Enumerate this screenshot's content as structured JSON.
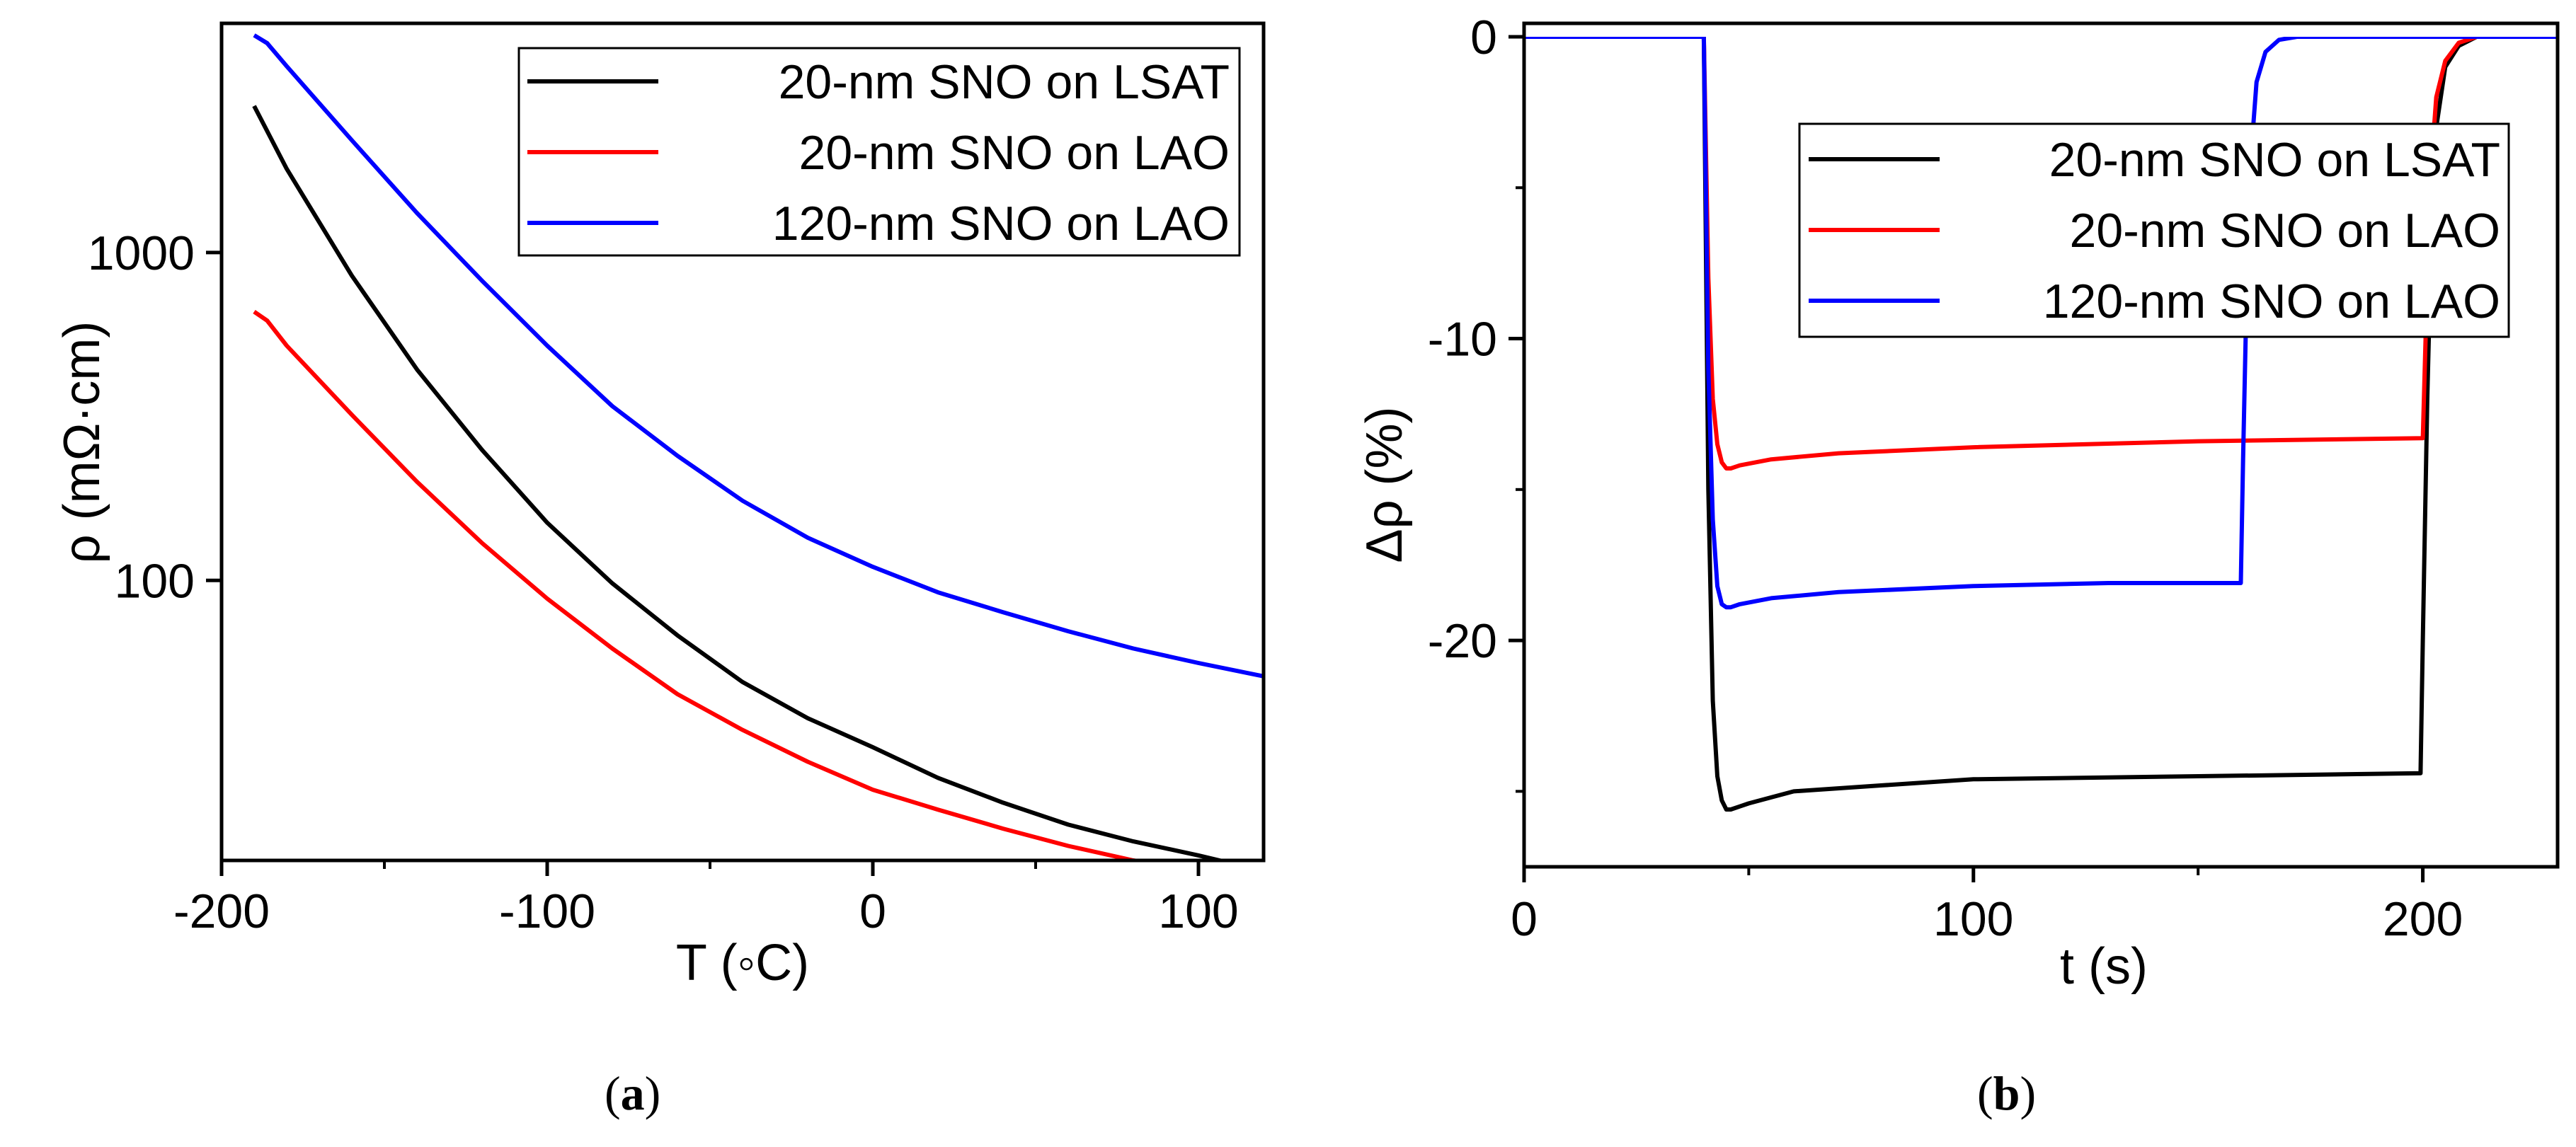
{
  "chart_data": [
    {
      "panel": "(a)",
      "type": "line",
      "xlabel": "T (◦C)",
      "ylabel": "ρ (mΩ·cm)",
      "xlim": [
        -200,
        120
      ],
      "ylim": [
        14,
        5000
      ],
      "yscale": "log",
      "xticks": [
        -200,
        -100,
        0,
        100
      ],
      "xticklabels": [
        "-200",
        "-100",
        "0",
        "100"
      ],
      "yticks": [
        100,
        1000
      ],
      "yticklabels": [
        "100",
        "1000"
      ],
      "grid": false,
      "legend_position": "top-right",
      "series": [
        {
          "name": "20-nm SNO on LSAT",
          "color": "#000000",
          "x": [
            -190,
            -180,
            -160,
            -140,
            -120,
            -100,
            -80,
            -60,
            -40,
            -20,
            0,
            20,
            40,
            60,
            80,
            100,
            120
          ],
          "y": [
            2800,
            1800,
            850,
            440,
            250,
            150,
            98,
            68,
            49,
            38,
            31,
            25,
            21,
            18,
            16,
            14.5,
            13
          ]
        },
        {
          "name": "20-nm SNO on LAO",
          "color": "#ff0000",
          "x": [
            -190,
            -186,
            -180,
            -160,
            -140,
            -120,
            -100,
            -80,
            -60,
            -40,
            -20,
            0,
            20,
            40,
            60,
            80,
            100,
            120
          ],
          "y": [
            660,
            620,
            520,
            320,
            200,
            130,
            88,
            62,
            45,
            35,
            28,
            23,
            20,
            17.5,
            15.5,
            14,
            13,
            12
          ]
        },
        {
          "name": "120-nm SNO on LAO",
          "color": "#0000ff",
          "x": [
            -190,
            -186,
            -180,
            -160,
            -140,
            -120,
            -100,
            -80,
            -60,
            -40,
            -20,
            0,
            20,
            40,
            60,
            80,
            100,
            120
          ],
          "y": [
            4600,
            4350,
            3700,
            2200,
            1320,
            820,
            520,
            340,
            240,
            175,
            135,
            110,
            92,
            80,
            70,
            62,
            56,
            51
          ]
        }
      ]
    },
    {
      "panel": "(b)",
      "type": "line",
      "xlabel": "t (s)",
      "ylabel": "Δρ (%)",
      "xlim": [
        0,
        230
      ],
      "ylim": [
        -27.5,
        0
      ],
      "xticks": [
        0,
        100,
        200
      ],
      "xticklabels": [
        "0",
        "100",
        "200"
      ],
      "yticks": [
        0,
        -10,
        -20
      ],
      "yticklabels": [
        "0",
        "-10",
        "-20"
      ],
      "grid": false,
      "legend_position": "upper-right",
      "series": [
        {
          "name": "20-nm SNO on LSAT",
          "color": "#000000",
          "x": [
            0,
            40,
            41,
            42,
            43,
            44,
            45,
            46,
            48,
            50,
            55,
            60,
            80,
            100,
            150,
            199.5,
            200,
            201,
            202,
            203,
            205,
            208,
            212,
            230
          ],
          "y": [
            0,
            0,
            -15,
            -22,
            -24.5,
            -25.3,
            -25.6,
            -25.6,
            -25.5,
            -25.4,
            -25.2,
            -25,
            -24.8,
            -24.6,
            -24.5,
            -24.4,
            -20,
            -12,
            -6,
            -3,
            -1,
            -0.3,
            0,
            0
          ]
        },
        {
          "name": "20-nm SNO on LAO",
          "color": "#ff0000",
          "x": [
            0,
            40,
            41,
            42,
            43,
            44,
            45,
            46,
            48,
            55,
            70,
            100,
            150,
            200,
            201,
            202,
            203,
            205,
            208,
            212,
            230
          ],
          "y": [
            0,
            0,
            -8,
            -12,
            -13.5,
            -14.1,
            -14.3,
            -14.3,
            -14.2,
            -14,
            -13.8,
            -13.6,
            -13.4,
            -13.3,
            -8,
            -4,
            -2,
            -0.8,
            -0.2,
            0,
            0
          ]
        },
        {
          "name": "120-nm SNO on LAO",
          "color": "#0000ff",
          "x": [
            0,
            40,
            41,
            42,
            43,
            44,
            45,
            46,
            48,
            55,
            70,
            100,
            130,
            159.5,
            160,
            161,
            162,
            163,
            165,
            168,
            172,
            230
          ],
          "y": [
            0,
            0,
            -11,
            -16,
            -18.2,
            -18.8,
            -18.9,
            -18.9,
            -18.8,
            -18.6,
            -18.4,
            -18.2,
            -18.1,
            -18.1,
            -14,
            -7,
            -3.5,
            -1.5,
            -0.5,
            -0.1,
            0,
            0
          ]
        }
      ]
    }
  ]
}
